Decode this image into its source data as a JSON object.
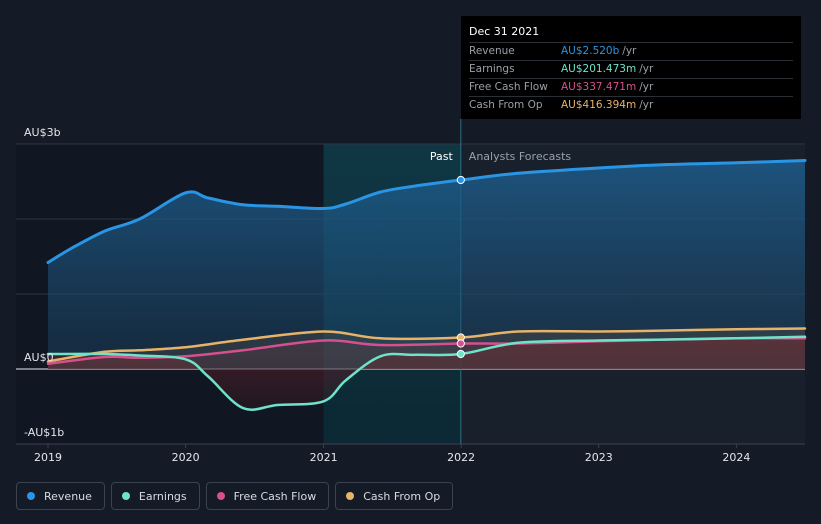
{
  "chart_data": {
    "type": "line",
    "y_unit": "AU$",
    "ylim": [
      -1,
      3
    ],
    "xlim": [
      "2019-01-01",
      "2024-07-01"
    ],
    "y_tick_labels": [
      {
        "value": 3,
        "label": "AU$3b"
      },
      {
        "value": 0,
        "label": "AU$0"
      },
      {
        "value": -1,
        "label": "-AU$1b"
      }
    ],
    "x_tick_labels": [
      "2019",
      "2020",
      "2021",
      "2022",
      "2023",
      "2024"
    ],
    "divider_date": "2021-12-31",
    "region_labels": {
      "past": "Past",
      "forecast": "Analysts Forecasts"
    },
    "series": [
      {
        "name": "Revenue",
        "color": "#2a95e4",
        "points": [
          [
            "2019-01-01",
            1.42
          ],
          [
            "2019-03-01",
            1.6
          ],
          [
            "2019-06-01",
            1.84
          ],
          [
            "2019-09-01",
            2.0
          ],
          [
            "2020-01-01",
            2.35
          ],
          [
            "2020-03-01",
            2.28
          ],
          [
            "2020-06-01",
            2.19
          ],
          [
            "2020-09-01",
            2.17
          ],
          [
            "2021-01-01",
            2.14
          ],
          [
            "2021-03-01",
            2.2
          ],
          [
            "2021-06-01",
            2.36
          ],
          [
            "2021-09-01",
            2.44
          ],
          [
            "2021-12-31",
            2.52
          ],
          [
            "2022-06-01",
            2.61
          ],
          [
            "2022-12-31",
            2.68
          ],
          [
            "2023-06-01",
            2.72
          ],
          [
            "2023-12-31",
            2.75
          ],
          [
            "2024-07-01",
            2.78
          ]
        ]
      },
      {
        "name": "Earnings",
        "color": "#6fe3c8",
        "points": [
          [
            "2019-01-01",
            0.2
          ],
          [
            "2019-06-01",
            0.2
          ],
          [
            "2019-09-01",
            0.18
          ],
          [
            "2020-01-01",
            0.13
          ],
          [
            "2020-03-01",
            -0.1
          ],
          [
            "2020-06-01",
            -0.52
          ],
          [
            "2020-09-01",
            -0.48
          ],
          [
            "2021-01-01",
            -0.43
          ],
          [
            "2021-03-01",
            -0.15
          ],
          [
            "2021-06-01",
            0.17
          ],
          [
            "2021-09-01",
            0.19
          ],
          [
            "2021-12-31",
            0.2
          ],
          [
            "2022-06-01",
            0.35
          ],
          [
            "2022-12-31",
            0.38
          ],
          [
            "2023-06-01",
            0.39
          ],
          [
            "2023-12-31",
            0.41
          ],
          [
            "2024-07-01",
            0.43
          ]
        ]
      },
      {
        "name": "Free Cash Flow",
        "color": "#d6508f",
        "points": [
          [
            "2019-01-01",
            0.07
          ],
          [
            "2019-06-01",
            0.16
          ],
          [
            "2019-09-01",
            0.15
          ],
          [
            "2020-01-01",
            0.17
          ],
          [
            "2020-06-01",
            0.25
          ],
          [
            "2021-01-01",
            0.38
          ],
          [
            "2021-06-01",
            0.32
          ],
          [
            "2021-12-31",
            0.34
          ],
          [
            "2022-06-01",
            0.34
          ],
          [
            "2022-12-31",
            0.37
          ],
          [
            "2023-06-01",
            0.39
          ],
          [
            "2023-12-31",
            0.41
          ],
          [
            "2024-07-01",
            0.41
          ]
        ]
      },
      {
        "name": "Cash From Op",
        "color": "#e7b36a",
        "points": [
          [
            "2019-01-01",
            0.1
          ],
          [
            "2019-06-01",
            0.23
          ],
          [
            "2019-09-01",
            0.25
          ],
          [
            "2020-01-01",
            0.29
          ],
          [
            "2020-06-01",
            0.39
          ],
          [
            "2021-01-01",
            0.5
          ],
          [
            "2021-06-01",
            0.41
          ],
          [
            "2021-12-31",
            0.42
          ],
          [
            "2022-06-01",
            0.5
          ],
          [
            "2022-12-31",
            0.5
          ],
          [
            "2023-06-01",
            0.51
          ],
          [
            "2023-12-31",
            0.53
          ],
          [
            "2024-07-01",
            0.54
          ]
        ]
      }
    ],
    "tooltip": {
      "date": "Dec 31 2021",
      "rows": [
        {
          "label": "Revenue",
          "value": "AU$2.520b",
          "unit": "/yr",
          "color": "#2a95e4"
        },
        {
          "label": "Earnings",
          "value": "AU$201.473m",
          "unit": "/yr",
          "color": "#6fe3c8"
        },
        {
          "label": "Free Cash Flow",
          "value": "AU$337.471m",
          "unit": "/yr",
          "color": "#d6508f"
        },
        {
          "label": "Cash From Op",
          "value": "AU$416.394m",
          "unit": "/yr",
          "color": "#e7b36a"
        }
      ]
    }
  },
  "legend": [
    {
      "label": "Revenue",
      "color": "#2a95e4"
    },
    {
      "label": "Earnings",
      "color": "#6fe3c8"
    },
    {
      "label": "Free Cash Flow",
      "color": "#d6508f"
    },
    {
      "label": "Cash From Op",
      "color": "#e7b36a"
    }
  ]
}
